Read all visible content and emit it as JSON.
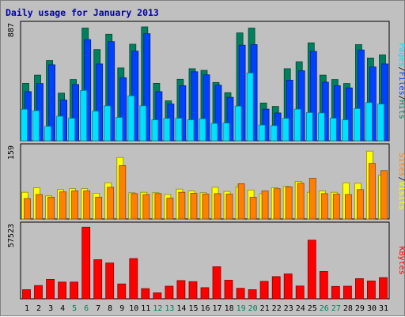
{
  "title": "Daily usage for January 2013",
  "colors": {
    "background": "#c0c0c0",
    "hits": "#00805c",
    "files": "#0040ff",
    "pages": "#00e0ff",
    "visits": "#ffff00",
    "sites": "#ff8000",
    "kbytes": "#ff0000",
    "weekend_label": "#00805c",
    "weekday_label": "#000000",
    "title": "#0000a8"
  },
  "chart_data": [
    {
      "type": "bar",
      "panel": "hits-files-pages",
      "ymax_label": "887",
      "ylim": [
        0,
        887
      ],
      "legend": [
        "Pages",
        "/",
        "Files",
        "/",
        "Hits"
      ],
      "categories": [
        "1",
        "2",
        "3",
        "4",
        "5",
        "6",
        "7",
        "8",
        "9",
        "10",
        "11",
        "12",
        "13",
        "14",
        "15",
        "16",
        "17",
        "18",
        "19",
        "20",
        "21",
        "22",
        "23",
        "24",
        "25",
        "26",
        "27",
        "28",
        "29",
        "30",
        "31"
      ],
      "weekend_days": [
        5,
        6,
        12,
        13,
        19,
        20,
        26,
        27
      ],
      "series": [
        {
          "name": "Hits",
          "values": [
            438,
            500,
            612,
            363,
            467,
            860,
            696,
            813,
            556,
            737,
            869,
            438,
            305,
            469,
            550,
            537,
            445,
            367,
            823,
            860,
            288,
            262,
            550,
            603,
            747,
            500,
            467,
            437,
            734,
            631,
            655
          ]
        },
        {
          "name": "Files",
          "values": [
            375,
            437,
            580,
            311,
            429,
            772,
            586,
            756,
            481,
            684,
            817,
            375,
            280,
            420,
            526,
            503,
            424,
            331,
            729,
            734,
            241,
            212,
            462,
            534,
            682,
            447,
            420,
            403,
            693,
            563,
            586
          ]
        },
        {
          "name": "Pages",
          "values": [
            240,
            229,
            110,
            187,
            172,
            384,
            226,
            266,
            178,
            343,
            267,
            159,
            170,
            172,
            159,
            168,
            132,
            135,
            264,
            517,
            120,
            115,
            171,
            241,
            215,
            212,
            172,
            159,
            245,
            291,
            280
          ]
        }
      ]
    },
    {
      "type": "bar",
      "panel": "visits-sites",
      "ymax_label": "159",
      "ylim": [
        0,
        159
      ],
      "legend": [
        "Sites",
        "/",
        "Visits"
      ],
      "categories": [
        "1",
        "2",
        "3",
        "4",
        "5",
        "6",
        "7",
        "8",
        "9",
        "10",
        "11",
        "12",
        "13",
        "14",
        "15",
        "16",
        "17",
        "18",
        "19",
        "20",
        "21",
        "22",
        "23",
        "24",
        "25",
        "26",
        "27",
        "28",
        "29",
        "30",
        "31"
      ],
      "series": [
        {
          "name": "Visits",
          "values": [
            59,
            69,
            51,
            65,
            67,
            67,
            57,
            80,
            136,
            58,
            59,
            58,
            54,
            66,
            62,
            58,
            70,
            61,
            71,
            64,
            56,
            69,
            72,
            83,
            59,
            62,
            59,
            80,
            79,
            150,
            97
          ]
        },
        {
          "name": "Sites",
          "values": [
            45,
            54,
            48,
            60,
            62,
            62,
            48,
            70,
            118,
            56,
            54,
            56,
            46,
            59,
            57,
            55,
            56,
            55,
            78,
            48,
            62,
            67,
            71,
            79,
            90,
            56,
            55,
            54,
            65,
            123,
            107
          ]
        }
      ]
    },
    {
      "type": "bar",
      "panel": "kbytes",
      "ymax_label": "57523",
      "ylim": [
        0,
        57523
      ],
      "legend": [
        "KBytes"
      ],
      "categories": [
        "1",
        "2",
        "3",
        "4",
        "5",
        "6",
        "7",
        "8",
        "9",
        "10",
        "11",
        "12",
        "13",
        "14",
        "15",
        "16",
        "17",
        "18",
        "19",
        "20",
        "21",
        "22",
        "23",
        "24",
        "25",
        "26",
        "27",
        "28",
        "29",
        "30",
        "31"
      ],
      "series": [
        {
          "name": "KBytes",
          "values": [
            7200,
            10400,
            15200,
            13100,
            13100,
            56100,
            30600,
            28000,
            11600,
            31500,
            8000,
            4700,
            9900,
            14300,
            13400,
            8700,
            25100,
            14600,
            8200,
            7200,
            13700,
            17400,
            19500,
            10000,
            45900,
            21400,
            9700,
            9900,
            15800,
            14000,
            16600
          ]
        }
      ]
    }
  ]
}
